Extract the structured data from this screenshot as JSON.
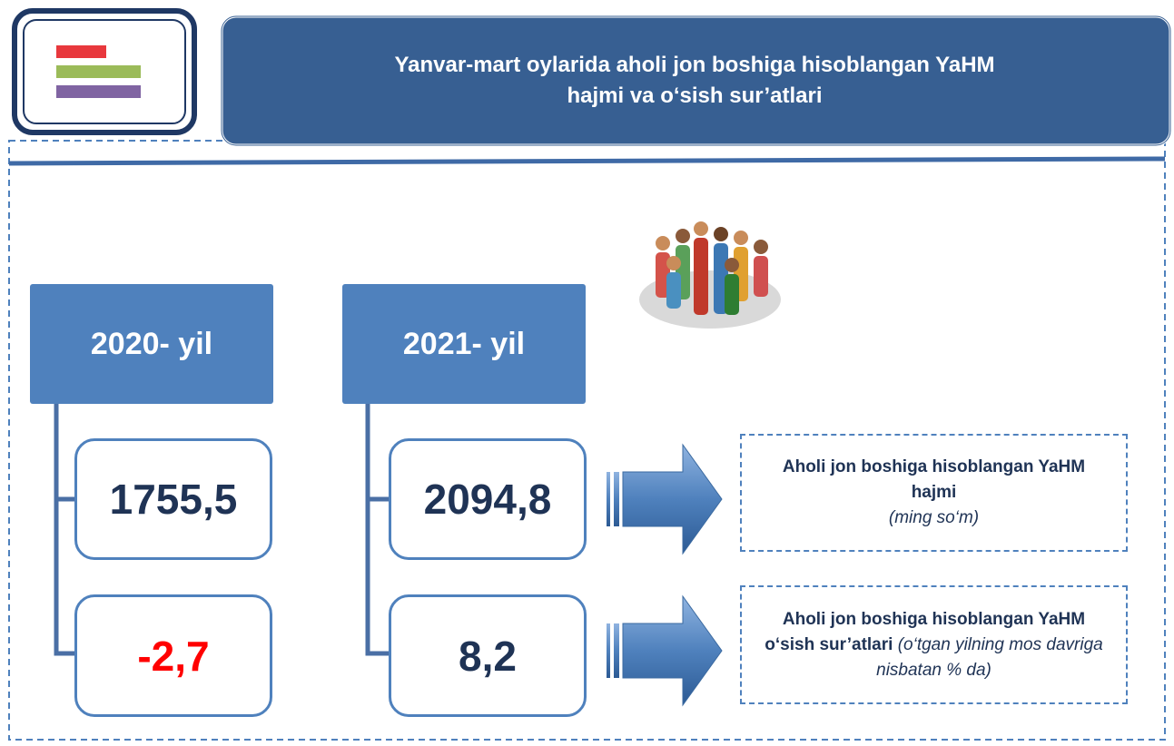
{
  "header": {
    "title_lines": [
      "Yanvar-mart oylarida aholi jon boshiga hisoblangan YaHM",
      "hajmi va o‘sish sur’atlari"
    ]
  },
  "columns": [
    {
      "year": "2020- yil",
      "volume": "1755,5",
      "growth": "-2,7"
    },
    {
      "year": "2021- yil",
      "volume": "2094,8",
      "growth": "8,2"
    }
  ],
  "legend": [
    {
      "label": "Aholi jon boshiga hisoblangan YaHM hajmi",
      "note": "(ming so‘m)"
    },
    {
      "label": "Aholi jon boshiga hisoblangan YaHM o‘sish sur’atlari",
      "note": "(o‘tgan yilning mos davriga nisbatan % da)"
    }
  ]
}
